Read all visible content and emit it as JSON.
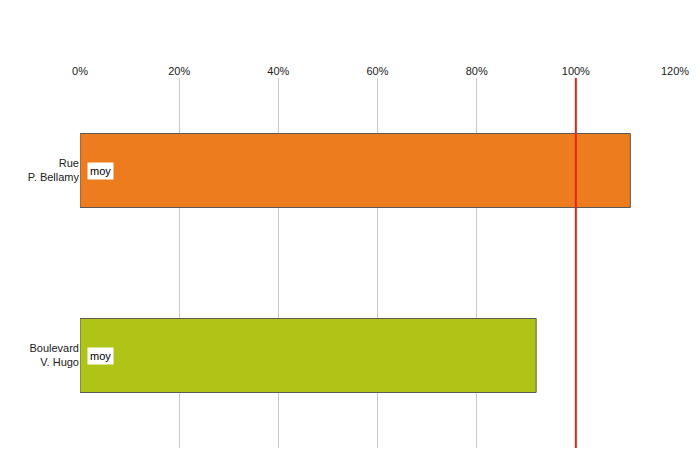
{
  "chart_data": {
    "type": "bar",
    "orientation": "horizontal",
    "categories": [
      "Rue\nP. Bellamy",
      "Boulevard\nV. Hugo"
    ],
    "values": [
      111,
      92
    ],
    "colors": [
      "#ec7c1e",
      "#b0c418"
    ],
    "bar_texts": [
      "moy",
      "moy"
    ],
    "reference_line": 100,
    "reference_color": "#e8231c",
    "xlim": [
      0,
      120
    ],
    "xticks": [
      {
        "value": 0,
        "label": "0%"
      },
      {
        "value": 20,
        "label": "20%"
      },
      {
        "value": 40,
        "label": "40%"
      },
      {
        "value": 60,
        "label": "60%"
      },
      {
        "value": 80,
        "label": "80%"
      },
      {
        "value": 100,
        "label": "100%"
      },
      {
        "value": 120,
        "label": "120%"
      }
    ],
    "grid": true
  }
}
